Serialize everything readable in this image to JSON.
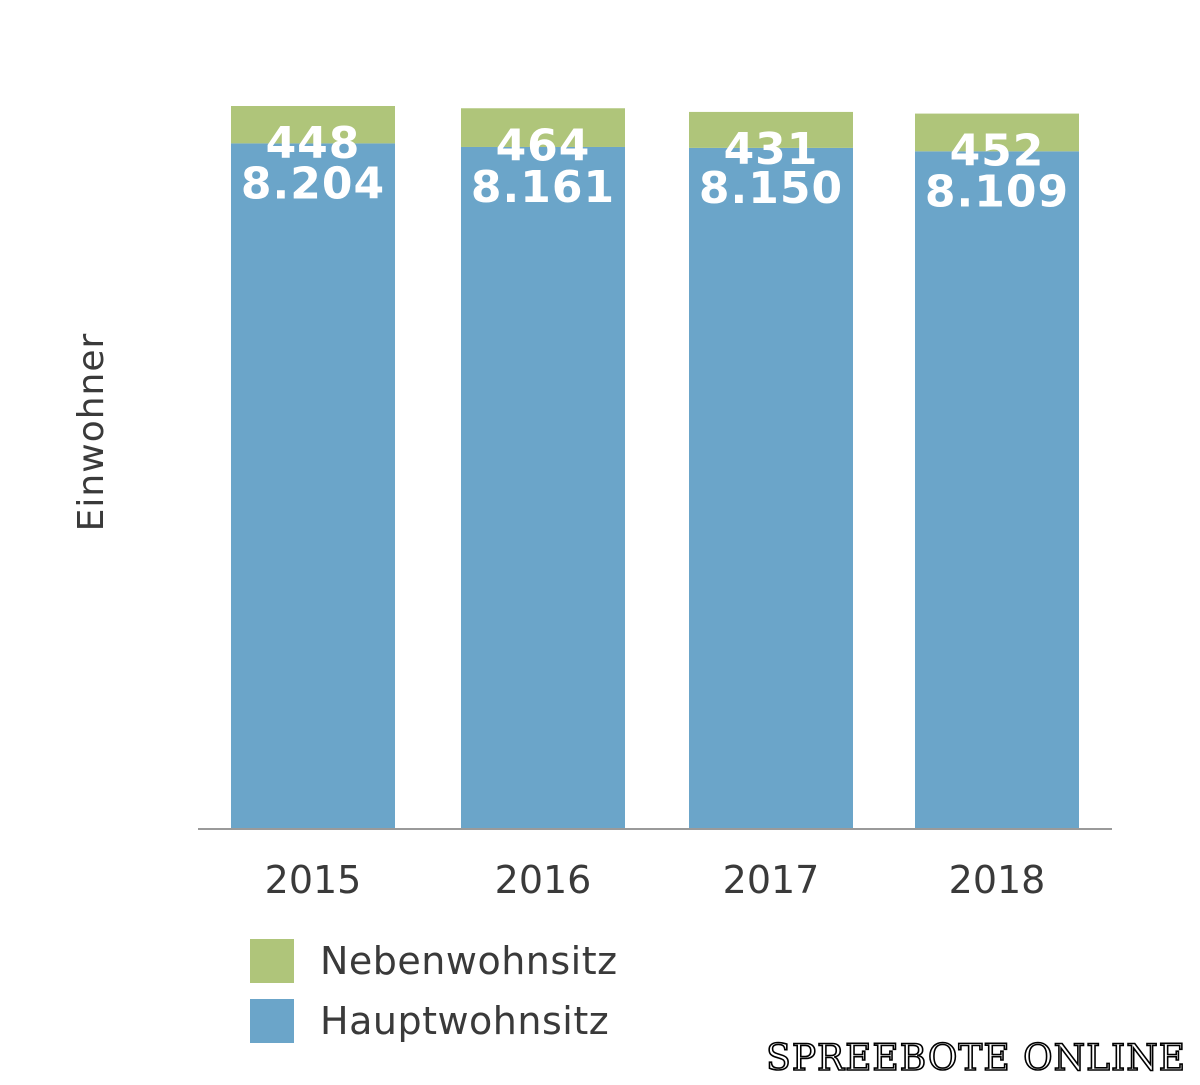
{
  "chart_data": {
    "type": "bar",
    "stacked": true,
    "categories": [
      "2015",
      "2016",
      "2017",
      "2018"
    ],
    "series": [
      {
        "name": "Hauptwohnsitz",
        "values": [
          8204,
          8161,
          8150,
          8109
        ],
        "labels": [
          "8.204",
          "8.161",
          "8.150",
          "8.109"
        ],
        "color": "#6ba5c9"
      },
      {
        "name": "Nebenwohnsitz",
        "values": [
          448,
          464,
          431,
          452
        ],
        "labels": [
          "448",
          "464",
          "431",
          "452"
        ],
        "color": "#afc57a"
      }
    ],
    "ylabel": "Einwohner",
    "xlabel": "",
    "ylim": [
      0,
      8652
    ],
    "grid": false,
    "legend_position": "bottom-left",
    "value_label_color": "#ffffff",
    "axis_color": "#9a9a9a",
    "tick_label_color": "#3a3a3a"
  },
  "legend": {
    "items": [
      {
        "label": "Nebenwohnsitz",
        "color": "#afc57a"
      },
      {
        "label": "Hauptwohnsitz",
        "color": "#6ba5c9"
      }
    ]
  },
  "watermark": {
    "text": "SPREEBOTE ONLINE"
  }
}
